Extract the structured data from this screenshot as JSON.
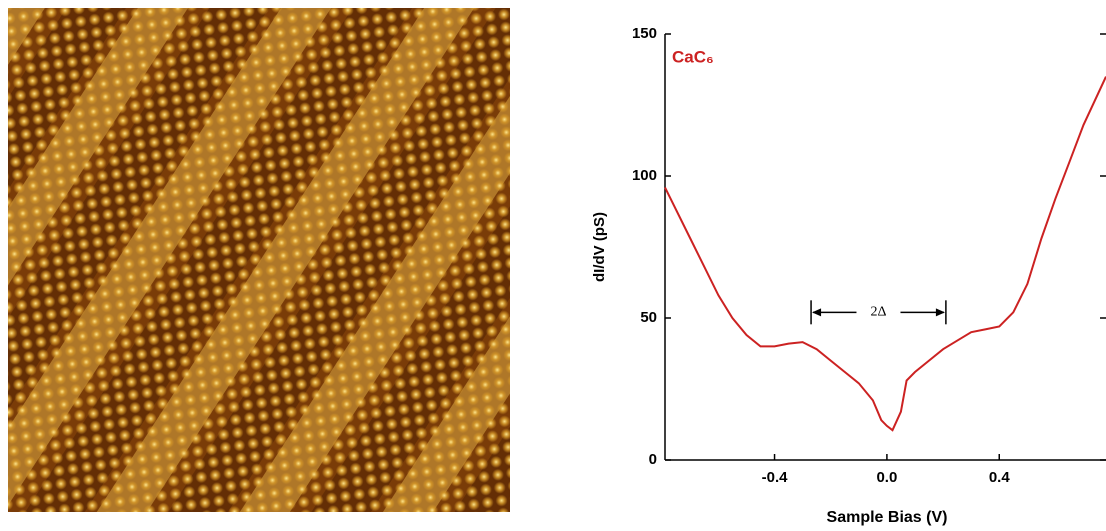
{
  "chart_data": {
    "type": "line",
    "annotation_label": "CaC₆",
    "x_label": "Sample Bias (V)",
    "y_label": "dI/dV (pS)",
    "gap_annotation": {
      "text": "2Δ",
      "x": [
        -0.27,
        0.21
      ],
      "y": 52
    },
    "x": [
      -0.79,
      -0.7,
      -0.6,
      -0.55,
      -0.5,
      -0.45,
      -0.4,
      -0.35,
      -0.3,
      -0.25,
      -0.2,
      -0.15,
      -0.1,
      -0.05,
      -0.02,
      0.0,
      0.02,
      0.05,
      0.07,
      0.1,
      0.15,
      0.2,
      0.25,
      0.3,
      0.35,
      0.4,
      0.45,
      0.5,
      0.55,
      0.6,
      0.65,
      0.7,
      0.78
    ],
    "series": [
      {
        "color": "#cc2222",
        "values": [
          96,
          78,
          58,
          50,
          44,
          40,
          40,
          41,
          41.5,
          39,
          35,
          31,
          27,
          21,
          14,
          12,
          10.5,
          17,
          28,
          31,
          35,
          39,
          42,
          45,
          46,
          47,
          52,
          62,
          78,
          92,
          105,
          118,
          135
        ]
      }
    ],
    "xlim": [
      -0.79,
      0.78
    ],
    "ylim": [
      0,
      150
    ],
    "xticks": [
      -0.4,
      {
        "value": 0,
        "label": "0.0"
      },
      0.4
    ],
    "yticks": [
      0,
      50,
      100,
      150
    ]
  }
}
